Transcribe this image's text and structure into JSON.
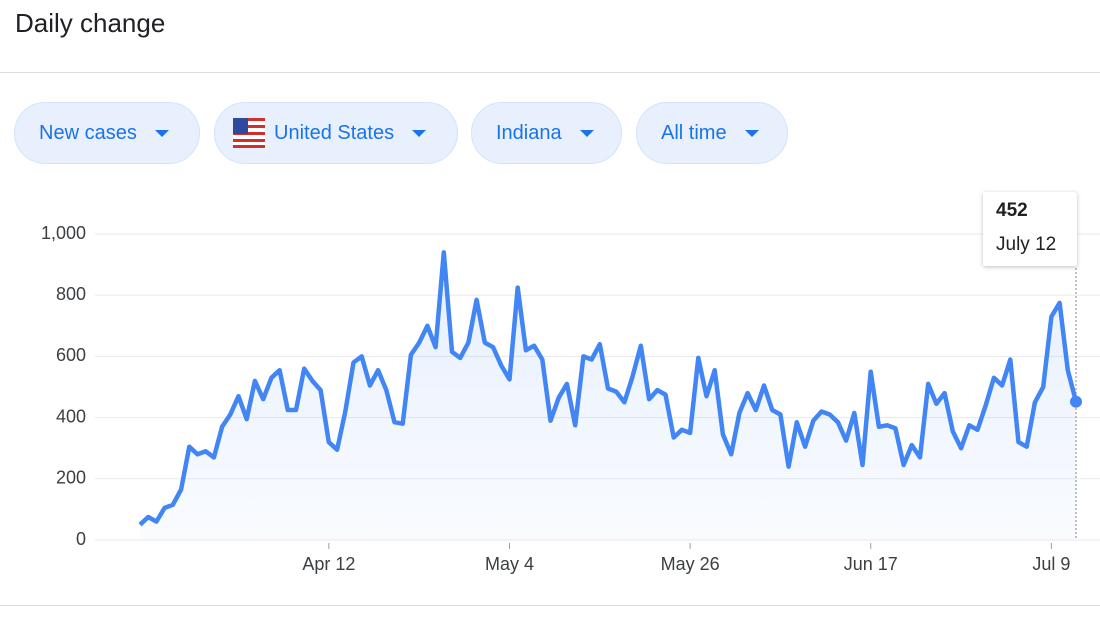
{
  "header": {
    "title": "Daily change"
  },
  "filters": [
    "New cases",
    "United States",
    "Indiana",
    "All time"
  ],
  "chart_data": {
    "type": "line",
    "color": "#4285f4",
    "grid": true,
    "categories": [
      null,
      null,
      null,
      null,
      null,
      null,
      null,
      null,
      null,
      null,
      null,
      null,
      null,
      null,
      null,
      null,
      null,
      null,
      null,
      null,
      null,
      null,
      null,
      "Apr 12",
      null,
      null,
      null,
      null,
      null,
      null,
      null,
      null,
      null,
      null,
      null,
      null,
      null,
      null,
      null,
      null,
      null,
      null,
      null,
      null,
      null,
      "May 4",
      null,
      null,
      null,
      null,
      null,
      null,
      null,
      null,
      null,
      null,
      null,
      null,
      null,
      null,
      null,
      null,
      null,
      null,
      null,
      null,
      null,
      "May 26",
      null,
      null,
      null,
      null,
      null,
      null,
      null,
      null,
      null,
      null,
      null,
      null,
      null,
      null,
      null,
      null,
      null,
      null,
      null,
      null,
      null,
      "Jun 17",
      null,
      null,
      null,
      null,
      null,
      null,
      null,
      null,
      null,
      null,
      null,
      null,
      null,
      null,
      null,
      null,
      null,
      null,
      null,
      null,
      null,
      "Jul 9",
      null,
      null,
      null
    ],
    "values": [
      50,
      75,
      60,
      105,
      115,
      165,
      305,
      280,
      290,
      270,
      370,
      410,
      470,
      395,
      520,
      460,
      530,
      555,
      425,
      425,
      560,
      520,
      490,
      320,
      295,
      420,
      580,
      600,
      505,
      555,
      490,
      385,
      380,
      605,
      645,
      700,
      630,
      940,
      615,
      595,
      645,
      785,
      645,
      630,
      570,
      525,
      825,
      620,
      635,
      590,
      390,
      465,
      510,
      375,
      600,
      590,
      640,
      495,
      485,
      450,
      535,
      635,
      460,
      490,
      475,
      335,
      360,
      350,
      595,
      470,
      555,
      345,
      280,
      415,
      480,
      425,
      505,
      425,
      410,
      240,
      385,
      305,
      390,
      420,
      410,
      385,
      325,
      415,
      245,
      550,
      370,
      375,
      365,
      245,
      310,
      270,
      510,
      445,
      480,
      355,
      300,
      375,
      360,
      440,
      530,
      505,
      590,
      320,
      305,
      450,
      500,
      730,
      775,
      555,
      452
    ],
    "ylim": [
      0,
      1000
    ],
    "yticks": [
      0,
      200,
      400,
      600,
      800,
      {
        "value": 1000,
        "label": "1,000"
      }
    ],
    "tooltip_date": "July 12"
  }
}
